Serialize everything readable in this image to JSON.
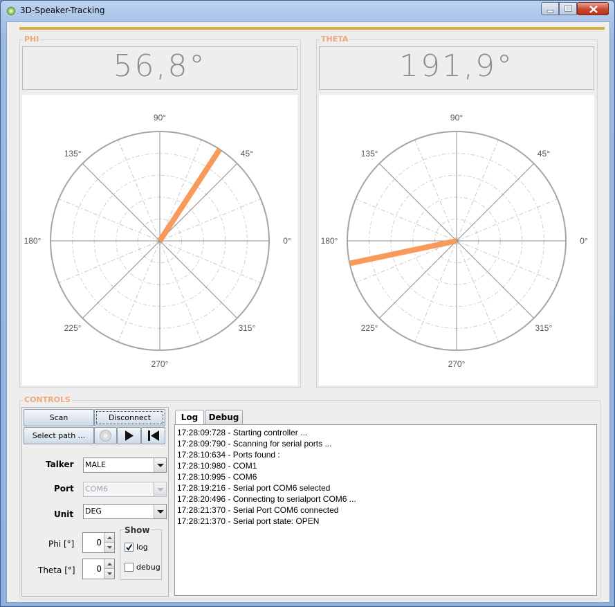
{
  "window": {
    "title": "3D-Speaker-Tracking"
  },
  "phi": {
    "title": "PHI",
    "readout": "56,8°",
    "angle_deg": 56.8,
    "labels": [
      "90°",
      "45°",
      "135°",
      "180°",
      "0°",
      "225°",
      "315°",
      "270°"
    ]
  },
  "theta": {
    "title": "THETA",
    "readout": "191,9°",
    "angle_deg": 191.9,
    "labels": [
      "90°",
      "45°",
      "135°",
      "180°",
      "0°",
      "225°",
      "315°",
      "270°"
    ]
  },
  "colors": {
    "accent": "#f2a87a",
    "needle": "#f79a5c",
    "gold": "#d6b043"
  },
  "controls": {
    "title": "CONTROLS",
    "scan_label": "Scan",
    "disconnect_label": "Disconnect",
    "select_path_label": "Select path ...",
    "talker_label": "Talker",
    "talker_value": "MALE",
    "port_label": "Port",
    "port_value": "COM6",
    "unit_label": "Unit",
    "unit_value": "DEG",
    "phi_label": "Phi [°]",
    "phi_value": "0",
    "theta_label": "Theta [°]",
    "theta_value": "0",
    "show_title": "Show",
    "log_label": "log",
    "log_checked": true,
    "debug_label": "debug",
    "debug_checked": false
  },
  "tabs": {
    "log": "Log",
    "debug": "Debug",
    "active": "Log"
  },
  "log_lines": [
    "17:28:09:728 - Starting controller ...",
    "17:28:09:790 - Scanning for serial ports ...",
    "17:28:10:634 - Ports found :",
    "17:28:10:980 - COM1",
    "17:28:10:995 - COM6",
    "17:28:19:216 - Serial port COM6 selected",
    "17:28:20:496 - Connecting to serialport COM6 ...",
    "17:28:21:370 - Serial Port COM6 connected",
    "17:28:21:370 - Serial port state: OPEN"
  ]
}
